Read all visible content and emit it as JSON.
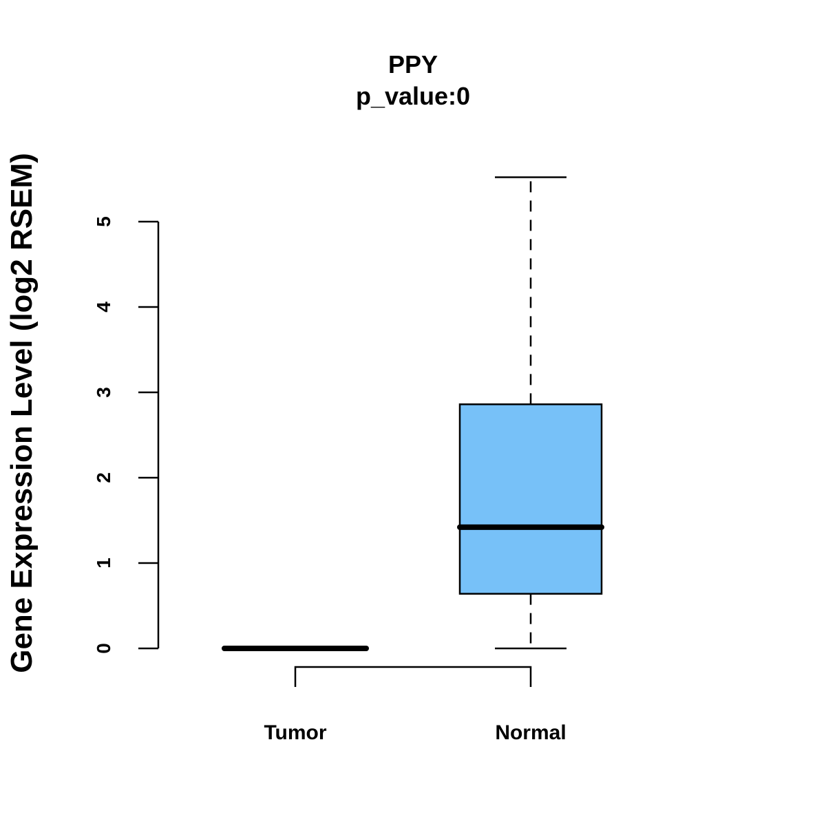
{
  "chart_data": {
    "type": "boxplot",
    "title": "PPY",
    "subtitle": "p_value:0",
    "xlabel": "",
    "ylabel": "Gene Expression Level (log2 RSEM)",
    "ylim": [
      0,
      5
    ],
    "yticks": [
      0,
      1,
      2,
      3,
      4,
      5
    ],
    "categories": [
      "Tumor",
      "Normal"
    ],
    "series": [
      {
        "name": "Tumor",
        "min": 0,
        "q1": 0,
        "median": 0,
        "q3": 0,
        "max": 0,
        "fill": "#ffffff"
      },
      {
        "name": "Normal",
        "min": 0,
        "q1": 0.64,
        "median": 1.42,
        "q3": 2.86,
        "max": 5.52,
        "fill": "#77c1f8"
      }
    ],
    "comparison_bracket": [
      "Tumor",
      "Normal"
    ]
  }
}
